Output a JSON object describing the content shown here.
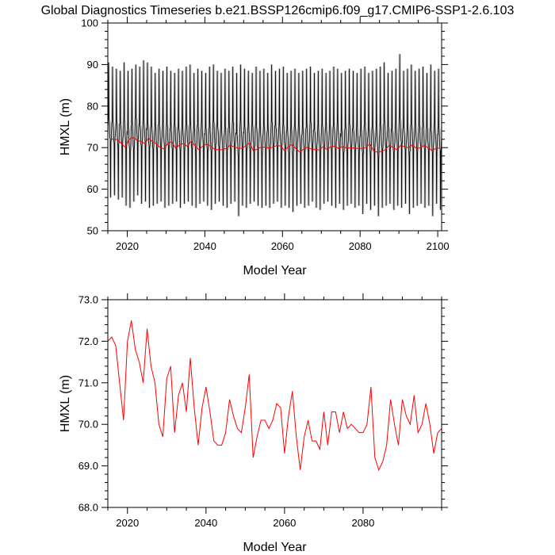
{
  "title": "Global Diagnostics Timeseries b.e21.BSSP126cmip6.f09_g17.CMIP6-SSP1-2.6.103",
  "colors": {
    "monthly": "#000000",
    "annual": "#ff0000",
    "axes": "#000000",
    "background": "#ffffff"
  },
  "chart_data": [
    {
      "type": "line",
      "xlabel": "Model Year",
      "ylabel": "HMXL (m)",
      "xlim": [
        2015,
        2101
      ],
      "ylim": [
        50,
        100
      ],
      "xticks": [
        2020,
        2040,
        2060,
        2080,
        2100
      ],
      "xtick_labels": [
        "2020",
        "2040",
        "2060",
        "2080",
        "2100"
      ],
      "yticks": [
        50,
        60,
        70,
        80,
        90,
        100
      ],
      "ytick_labels": [
        "50",
        "60",
        "70",
        "80",
        "90",
        "100"
      ],
      "grid": false,
      "series": [
        {
          "style": "monthly seasonal cycle (black)",
          "start_year": 2015,
          "end_year": 2101,
          "annual_max": [
            90.5,
            89.5,
            89.0,
            88.5,
            90.5,
            88.5,
            89.0,
            90.0,
            89.5,
            91.0,
            90.5,
            89.5,
            88.0,
            89.0,
            88.5,
            89.5,
            88.5,
            88.0,
            89.0,
            88.5,
            89.5,
            90.0,
            88.0,
            89.0,
            88.5,
            88.0,
            89.5,
            90.0,
            88.5,
            88.0,
            89.0,
            88.5,
            89.5,
            88.0,
            90.0,
            89.0,
            88.5,
            88.0,
            89.5,
            88.5,
            89.0,
            88.0,
            90.0,
            88.5,
            89.0,
            89.5,
            88.0,
            88.5,
            89.0,
            88.0,
            88.5,
            89.0,
            89.5,
            88.0,
            88.5,
            89.0,
            88.0,
            88.5,
            89.5,
            89.0,
            88.0,
            88.5,
            89.0,
            88.5,
            88.0,
            89.0,
            89.5,
            88.0,
            88.5,
            89.0,
            89.5,
            90.5,
            88.0,
            88.5,
            89.0,
            92.5,
            88.5,
            89.0,
            90.0,
            88.5,
            89.0,
            89.5,
            88.0,
            90.0,
            88.5,
            89.0,
            88.0
          ],
          "annual_min": [
            58.0,
            58.5,
            57.5,
            58.0,
            56.0,
            55.5,
            57.0,
            58.5,
            56.5,
            57.0,
            55.5,
            56.0,
            56.5,
            57.0,
            55.5,
            56.0,
            56.5,
            57.0,
            55.5,
            56.5,
            57.0,
            56.0,
            55.5,
            56.5,
            57.0,
            56.0,
            55.0,
            56.5,
            57.0,
            56.0,
            55.5,
            56.5,
            57.0,
            53.5,
            56.0,
            55.5,
            56.5,
            57.0,
            56.0,
            55.5,
            56.0,
            55.5,
            56.5,
            57.0,
            55.5,
            56.0,
            55.5,
            54.5,
            56.0,
            56.5,
            55.5,
            56.0,
            57.0,
            55.5,
            55.0,
            56.5,
            57.0,
            56.0,
            55.5,
            56.5,
            55.0,
            56.0,
            56.5,
            55.5,
            56.0,
            54.0,
            56.5,
            55.0,
            56.0,
            53.5,
            55.5,
            56.0,
            56.5,
            55.0,
            56.0,
            55.5,
            56.5,
            54.0,
            55.5,
            56.0,
            56.5,
            55.5,
            56.0,
            53.5,
            56.5,
            55.0,
            56.5
          ]
        },
        {
          "style": "annual mean (red)",
          "x": [
            2015,
            2016,
            2017,
            2018,
            2019,
            2020,
            2021,
            2022,
            2023,
            2024,
            2025,
            2026,
            2027,
            2028,
            2029,
            2030,
            2031,
            2032,
            2033,
            2034,
            2035,
            2036,
            2037,
            2038,
            2039,
            2040,
            2041,
            2042,
            2043,
            2044,
            2045,
            2046,
            2047,
            2048,
            2049,
            2050,
            2051,
            2052,
            2053,
            2054,
            2055,
            2056,
            2057,
            2058,
            2059,
            2060,
            2061,
            2062,
            2063,
            2064,
            2065,
            2066,
            2067,
            2068,
            2069,
            2070,
            2071,
            2072,
            2073,
            2074,
            2075,
            2076,
            2077,
            2078,
            2079,
            2080,
            2081,
            2082,
            2083,
            2084,
            2085,
            2086,
            2087,
            2088,
            2089,
            2090,
            2091,
            2092,
            2093,
            2094,
            2095,
            2096,
            2097,
            2098,
            2099,
            2100
          ],
          "y": [
            72.0,
            72.1,
            71.9,
            71.0,
            70.1,
            72.0,
            72.5,
            71.8,
            71.5,
            71.0,
            72.3,
            71.4,
            71.0,
            70.0,
            69.7,
            71.1,
            71.4,
            69.8,
            70.7,
            71.0,
            70.3,
            71.6,
            70.4,
            69.5,
            70.4,
            70.9,
            70.3,
            69.6,
            69.5,
            69.5,
            69.8,
            70.6,
            70.2,
            69.9,
            69.8,
            70.4,
            71.2,
            69.2,
            69.7,
            70.1,
            70.1,
            69.9,
            70.1,
            70.5,
            70.4,
            69.3,
            70.2,
            70.8,
            69.7,
            68.9,
            69.7,
            70.1,
            69.6,
            69.6,
            69.4,
            70.3,
            69.5,
            70.3,
            70.3,
            69.8,
            70.3,
            69.9,
            70.0,
            69.9,
            69.8,
            69.8,
            70.0,
            70.9,
            69.2,
            68.9,
            69.1,
            69.5,
            70.6,
            70.0,
            69.5,
            70.6,
            70.2,
            70.0,
            70.7,
            69.8,
            70.0,
            70.5,
            70.0,
            69.3,
            69.8,
            69.9
          ]
        }
      ]
    },
    {
      "type": "line",
      "xlabel": "Model Year",
      "ylabel": "HMXL (m)",
      "xlim": [
        2015,
        2100
      ],
      "ylim": [
        68.0,
        73.0
      ],
      "xticks": [
        2020,
        2040,
        2060,
        2080
      ],
      "xtick_labels": [
        "2020",
        "2040",
        "2060",
        "2080"
      ],
      "yticks": [
        68.0,
        69.0,
        70.0,
        71.0,
        72.0,
        73.0
      ],
      "ytick_labels": [
        "68.0",
        "69.0",
        "70.0",
        "71.0",
        "72.0",
        "73.0"
      ],
      "grid": false,
      "series": [
        {
          "style": "annual mean (red)",
          "x": [
            2015,
            2016,
            2017,
            2018,
            2019,
            2020,
            2021,
            2022,
            2023,
            2024,
            2025,
            2026,
            2027,
            2028,
            2029,
            2030,
            2031,
            2032,
            2033,
            2034,
            2035,
            2036,
            2037,
            2038,
            2039,
            2040,
            2041,
            2042,
            2043,
            2044,
            2045,
            2046,
            2047,
            2048,
            2049,
            2050,
            2051,
            2052,
            2053,
            2054,
            2055,
            2056,
            2057,
            2058,
            2059,
            2060,
            2061,
            2062,
            2063,
            2064,
            2065,
            2066,
            2067,
            2068,
            2069,
            2070,
            2071,
            2072,
            2073,
            2074,
            2075,
            2076,
            2077,
            2078,
            2079,
            2080,
            2081,
            2082,
            2083,
            2084,
            2085,
            2086,
            2087,
            2088,
            2089,
            2090,
            2091,
            2092,
            2093,
            2094,
            2095,
            2096,
            2097,
            2098,
            2099,
            2100
          ],
          "y": [
            72.0,
            72.1,
            71.9,
            71.0,
            70.1,
            72.0,
            72.5,
            71.8,
            71.5,
            71.0,
            72.3,
            71.4,
            71.0,
            70.0,
            69.7,
            71.1,
            71.4,
            69.8,
            70.7,
            71.0,
            70.3,
            71.6,
            70.4,
            69.5,
            70.4,
            70.9,
            70.3,
            69.6,
            69.5,
            69.5,
            69.8,
            70.6,
            70.2,
            69.9,
            69.8,
            70.4,
            71.2,
            69.2,
            69.7,
            70.1,
            70.1,
            69.9,
            70.1,
            70.5,
            70.4,
            69.3,
            70.2,
            70.8,
            69.7,
            68.9,
            69.7,
            70.1,
            69.6,
            69.6,
            69.4,
            70.3,
            69.5,
            70.3,
            70.3,
            69.8,
            70.3,
            69.9,
            70.0,
            69.9,
            69.8,
            69.8,
            70.0,
            70.9,
            69.2,
            68.9,
            69.1,
            69.5,
            70.6,
            70.0,
            69.5,
            70.6,
            70.2,
            70.0,
            70.7,
            69.8,
            70.0,
            70.5,
            70.0,
            69.3,
            69.8,
            69.9
          ]
        }
      ]
    }
  ]
}
